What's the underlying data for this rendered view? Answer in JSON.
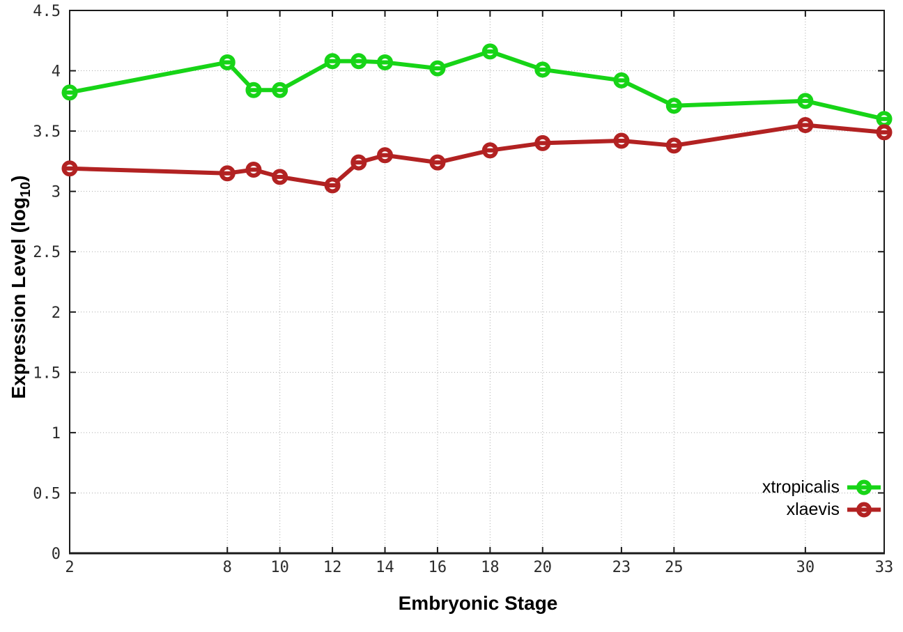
{
  "chart_data": {
    "type": "line",
    "xlabel": "Embryonic Stage",
    "ylabel_prefix": "Expression Level (log",
    "ylabel_sub": "10",
    "ylabel_suffix": ")",
    "xlim": [
      2,
      33
    ],
    "ylim": [
      0,
      4.5
    ],
    "x": [
      2,
      8,
      9,
      10,
      12,
      13,
      14,
      16,
      18,
      20,
      23,
      25,
      30,
      33
    ],
    "xticks": [
      2,
      8,
      10,
      12,
      14,
      16,
      18,
      20,
      23,
      25,
      30,
      33
    ],
    "xtick_labels": [
      "2",
      "8",
      "10",
      "12",
      "14",
      "16",
      "18",
      "20",
      "23",
      "25",
      "30",
      "33"
    ],
    "yticks": [
      0,
      0.5,
      1,
      1.5,
      2,
      2.5,
      3,
      3.5,
      4,
      4.5
    ],
    "ytick_labels": [
      "0",
      "0.5",
      "1",
      "1.5",
      "2",
      "2.5",
      "3",
      "3.5",
      "4",
      "4.5"
    ],
    "grid": true,
    "legend_position": "bottom-right",
    "marker": "open-circle-with-dash",
    "series": [
      {
        "name": "xtropicalis",
        "color": "#17d417",
        "values": [
          3.82,
          4.07,
          3.84,
          3.84,
          4.08,
          4.08,
          4.07,
          4.02,
          4.16,
          4.01,
          3.92,
          3.71,
          3.75,
          3.6
        ]
      },
      {
        "name": "xlaevis",
        "color": "#b22222",
        "values": [
          3.19,
          3.15,
          3.18,
          3.12,
          3.05,
          3.24,
          3.3,
          3.24,
          3.34,
          3.4,
          3.42,
          3.38,
          3.55,
          3.49
        ]
      }
    ],
    "grid_color": "#aaaaaa",
    "border_color": "#1a1a1a",
    "tick_text_color": "#2b2b2b",
    "background": "#ffffff"
  }
}
